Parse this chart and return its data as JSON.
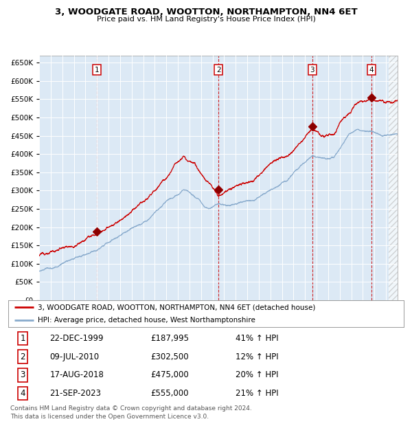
{
  "title1": "3, WOODGATE ROAD, WOOTTON, NORTHAMPTON, NN4 6ET",
  "title2": "Price paid vs. HM Land Registry's House Price Index (HPI)",
  "ylim": [
    0,
    670000
  ],
  "xlim_start": 1995.0,
  "xlim_end": 2026.0,
  "plot_bg_color": "#dce9f5",
  "sale_dates": [
    1999.97,
    2010.52,
    2018.63,
    2023.72
  ],
  "sale_prices": [
    187995,
    302500,
    475000,
    555000
  ],
  "sale_labels": [
    "1",
    "2",
    "3",
    "4"
  ],
  "legend_line1": "3, WOODGATE ROAD, WOOTTON, NORTHAMPTON, NN4 6ET (detached house)",
  "legend_line2": "HPI: Average price, detached house, West Northamptonshire",
  "table_data": [
    [
      "1",
      "22-DEC-1999",
      "£187,995",
      "41% ↑ HPI"
    ],
    [
      "2",
      "09-JUL-2010",
      "£302,500",
      "12% ↑ HPI"
    ],
    [
      "3",
      "17-AUG-2018",
      "£475,000",
      "20% ↑ HPI"
    ],
    [
      "4",
      "21-SEP-2023",
      "£555,000",
      "21% ↑ HPI"
    ]
  ],
  "footer": "Contains HM Land Registry data © Crown copyright and database right 2024.\nThis data is licensed under the Open Government Licence v3.0.",
  "line_color_red": "#cc0000",
  "line_color_blue": "#88aacc"
}
